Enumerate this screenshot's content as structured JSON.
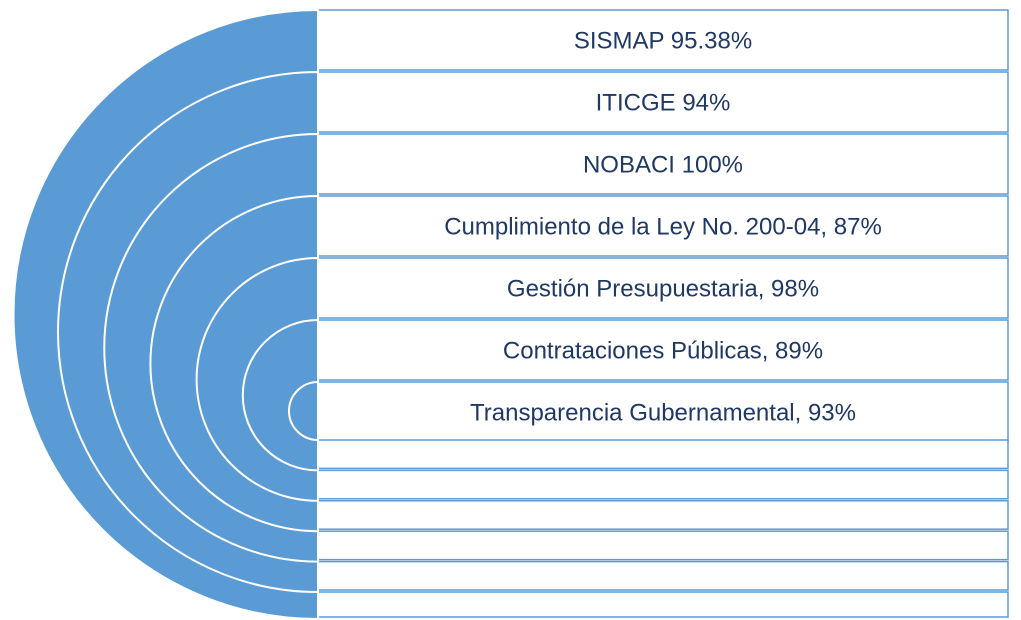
{
  "items": [
    {
      "label": "SISMAP 95.38%"
    },
    {
      "label": "ITICGE 94%"
    },
    {
      "label": "NOBACI 100%"
    },
    {
      "label": "Cumplimiento de la Ley No. 200-04, 87%"
    },
    {
      "label": "Gestión Presupuestaria, 98%"
    },
    {
      "label": "Contrataciones Públicas, 89%"
    },
    {
      "label": "Transparencia Gubernamental, 93%"
    }
  ]
}
